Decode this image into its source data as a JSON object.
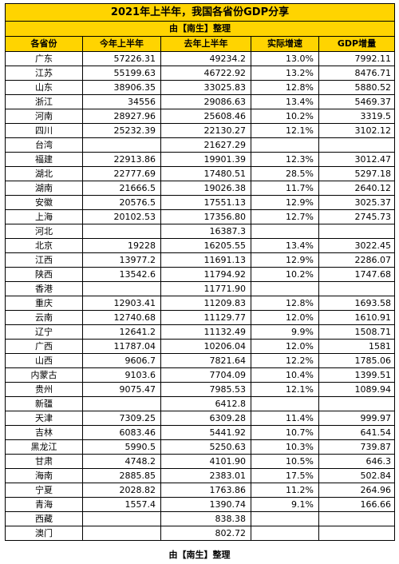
{
  "title": "2021年上半年，我国各省份GDP分享",
  "subtitle": "由【南生】整理",
  "footer": "由【南生】整理",
  "columns": [
    "各省份",
    "今年上半年",
    "去年上半年",
    "实际增速",
    "GDP增量"
  ],
  "rows": [
    [
      "广东",
      "57226.31",
      "49234.2",
      "13.0%",
      "7992.11"
    ],
    [
      "江苏",
      "55199.63",
      "46722.92",
      "13.2%",
      "8476.71"
    ],
    [
      "山东",
      "38906.35",
      "33025.83",
      "12.8%",
      "5880.52"
    ],
    [
      "浙江",
      "34556",
      "29086.63",
      "13.4%",
      "5469.37"
    ],
    [
      "河南",
      "28927.96",
      "25608.46",
      "10.2%",
      "3319.5"
    ],
    [
      "四川",
      "25232.39",
      "22130.27",
      "12.1%",
      "3102.12"
    ],
    [
      "台湾",
      "",
      "21627.29",
      "",
      ""
    ],
    [
      "福建",
      "22913.86",
      "19901.39",
      "12.3%",
      "3012.47"
    ],
    [
      "湖北",
      "22777.69",
      "17480.51",
      "28.5%",
      "5297.18"
    ],
    [
      "湖南",
      "21666.5",
      "19026.38",
      "11.7%",
      "2640.12"
    ],
    [
      "安徽",
      "20576.5",
      "17551.13",
      "12.9%",
      "3025.37"
    ],
    [
      "上海",
      "20102.53",
      "17356.80",
      "12.7%",
      "2745.73"
    ],
    [
      "河北",
      "",
      "16387.3",
      "",
      ""
    ],
    [
      "北京",
      "19228",
      "16205.55",
      "13.4%",
      "3022.45"
    ],
    [
      "江西",
      "13977.2",
      "11691.13",
      "12.9%",
      "2286.07"
    ],
    [
      "陕西",
      "13542.6",
      "11794.92",
      "10.2%",
      "1747.68"
    ],
    [
      "香港",
      "",
      "11771.90",
      "",
      ""
    ],
    [
      "重庆",
      "12903.41",
      "11209.83",
      "12.8%",
      "1693.58"
    ],
    [
      "云南",
      "12740.68",
      "11129.77",
      "12.0%",
      "1610.91"
    ],
    [
      "辽宁",
      "12641.2",
      "11132.49",
      "9.9%",
      "1508.71"
    ],
    [
      "广西",
      "11787.04",
      "10206.04",
      "12.0%",
      "1581"
    ],
    [
      "山西",
      "9606.7",
      "7821.64",
      "12.2%",
      "1785.06"
    ],
    [
      "内蒙古",
      "9103.6",
      "7704.09",
      "10.4%",
      "1399.51"
    ],
    [
      "贵州",
      "9075.47",
      "7985.53",
      "12.1%",
      "1089.94"
    ],
    [
      "新疆",
      "",
      "6412.8",
      "",
      ""
    ],
    [
      "天津",
      "7309.25",
      "6309.28",
      "11.4%",
      "999.97"
    ],
    [
      "吉林",
      "6083.46",
      "5441.92",
      "10.7%",
      "641.54"
    ],
    [
      "黑龙江",
      "5990.5",
      "5250.63",
      "10.3%",
      "739.87"
    ],
    [
      "甘肃",
      "4748.2",
      "4101.90",
      "10.5%",
      "646.3"
    ],
    [
      "海南",
      "2885.85",
      "2383.01",
      "17.5%",
      "502.84"
    ],
    [
      "宁夏",
      "2028.82",
      "1763.86",
      "11.2%",
      "264.96"
    ],
    [
      "青海",
      "1557.4",
      "1390.74",
      "9.1%",
      "166.66"
    ],
    [
      "西藏",
      "",
      "838.38",
      "",
      ""
    ],
    [
      "澳门",
      "",
      "802.72",
      "",
      ""
    ]
  ],
  "colors": {
    "header_bg": "#ffd400",
    "border": "#000000"
  }
}
